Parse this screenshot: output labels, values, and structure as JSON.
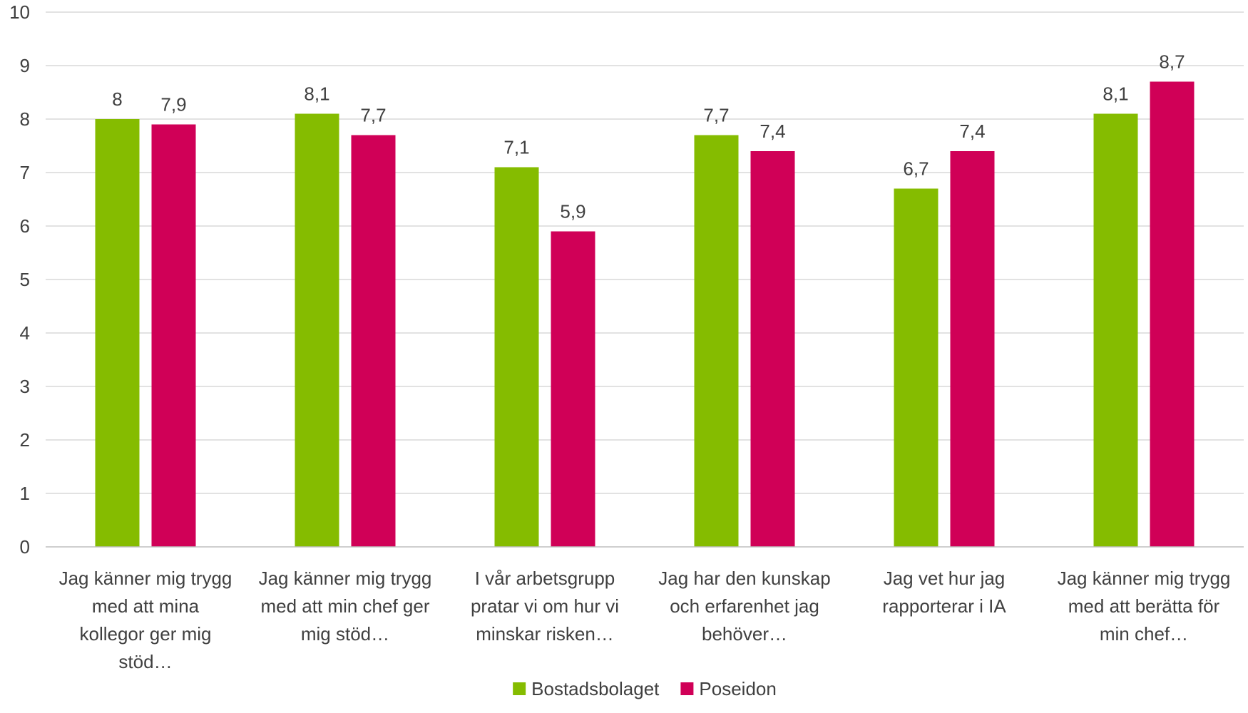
{
  "chart_data": {
    "type": "bar",
    "title": "",
    "xlabel": "",
    "ylabel": "",
    "ylim": [
      0,
      10
    ],
    "yticks": [
      "0",
      "1",
      "2",
      "3",
      "4",
      "5",
      "6",
      "7",
      "8",
      "9",
      "10"
    ],
    "grid": true,
    "legend_position": "bottom",
    "categories": [
      [
        "Jag känner mig trygg",
        "med att mina",
        "kollegor ger mig",
        "stöd…"
      ],
      [
        "Jag känner mig trygg",
        "med att min chef ger",
        "mig stöd…"
      ],
      [
        "I vår arbetsgrupp",
        "pratar vi om hur vi",
        "minskar risken…"
      ],
      [
        "Jag har den kunskap",
        "och erfarenhet jag",
        "behöver…"
      ],
      [
        "Jag vet hur jag",
        "rapporterar i IA"
      ],
      [
        "Jag känner mig trygg",
        "med att berätta för",
        "min chef…"
      ]
    ],
    "series": [
      {
        "name": "Bostadsbolaget",
        "color": "#85bc00",
        "values": [
          8,
          8.1,
          7.1,
          7.7,
          6.7,
          8.1
        ],
        "labels": [
          "8",
          "8,1",
          "7,1",
          "7,7",
          "6,7",
          "8,1"
        ]
      },
      {
        "name": "Poseidon",
        "color": "#d00057",
        "values": [
          7.9,
          7.7,
          5.9,
          7.4,
          7.4,
          8.7
        ],
        "labels": [
          "7,9",
          "7,7",
          "5,9",
          "7,4",
          "7,4",
          "8,7"
        ]
      }
    ]
  }
}
